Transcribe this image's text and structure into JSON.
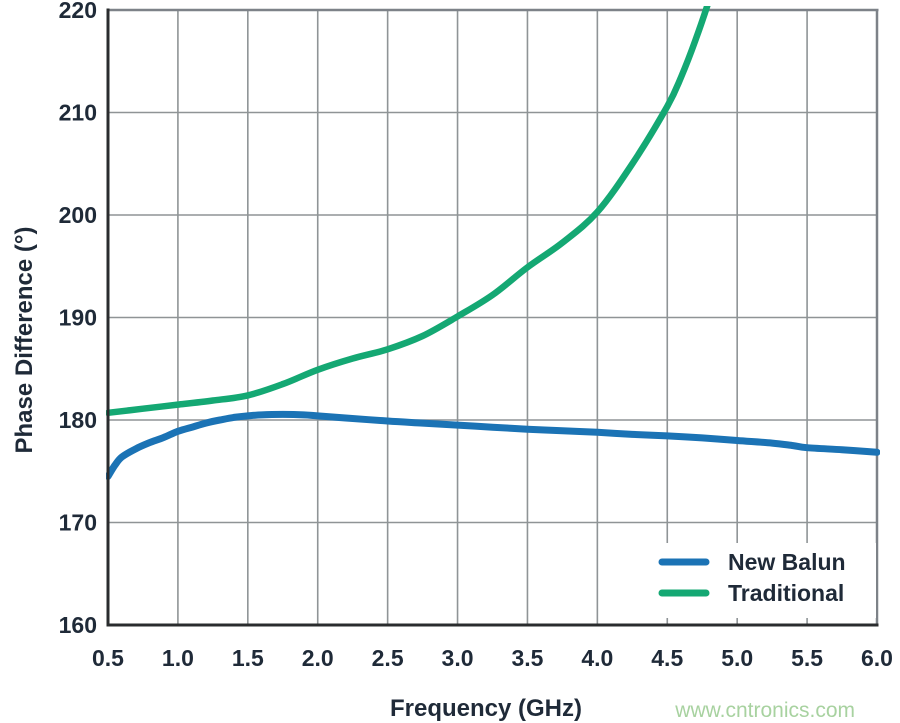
{
  "watermark": {
    "text": "www.cntronics.com",
    "color": "#a8d2a0"
  },
  "colors": {
    "background": "#ffffff",
    "label": "#1f2a38",
    "grid": "#8f9496",
    "plot_border": "#7d8288",
    "axis": "#2a2c2e",
    "legend_background": "#ffffff"
  },
  "chart_data": {
    "type": "line",
    "title": "",
    "xlabel": "Frequency (GHz)",
    "ylabel": "Phase Difference (°)",
    "xlim": [
      0.5,
      6.0
    ],
    "ylim": [
      160,
      220
    ],
    "grid": true,
    "legend_position": "inside-bottom-right",
    "xticks": [
      0.5,
      1.0,
      1.5,
      2.0,
      2.5,
      3.0,
      3.5,
      4.0,
      4.5,
      5.0,
      5.5,
      6.0
    ],
    "xtick_labels": [
      "0.5",
      "1.0",
      "1.5",
      "2.0",
      "2.5",
      "3.0",
      "3.5",
      "4.0",
      "4.5",
      "5.0",
      "5.5",
      "6.0"
    ],
    "yticks": [
      160,
      170,
      180,
      190,
      200,
      210,
      220
    ],
    "ytick_labels": [
      "160",
      "170",
      "180",
      "190",
      "200",
      "210",
      "220"
    ],
    "series": [
      {
        "name": "New Balun",
        "color": "#1b73b5",
        "stroke_width": 7,
        "x": [
          0.5,
          0.55,
          0.6,
          0.7,
          0.8,
          0.9,
          1.0,
          1.1,
          1.2,
          1.3,
          1.4,
          1.5,
          1.6,
          1.75,
          1.9,
          2.0,
          2.2,
          2.5,
          2.75,
          3.0,
          3.25,
          3.5,
          3.75,
          4.0,
          4.25,
          4.5,
          4.75,
          5.0,
          5.25,
          5.4,
          5.5,
          5.75,
          6.0
        ],
        "y": [
          174.5,
          175.6,
          176.4,
          177.2,
          177.8,
          178.3,
          178.9,
          179.3,
          179.7,
          180.0,
          180.25,
          180.4,
          180.5,
          180.55,
          180.5,
          180.4,
          180.2,
          179.9,
          179.7,
          179.5,
          179.3,
          179.1,
          178.95,
          178.8,
          178.6,
          178.45,
          178.25,
          178.0,
          177.75,
          177.5,
          177.3,
          177.1,
          176.85
        ]
      },
      {
        "name": "Traditional",
        "color": "#14a873",
        "stroke_width": 6.5,
        "x": [
          0.5,
          0.75,
          1.0,
          1.25,
          1.5,
          1.75,
          2.0,
          2.25,
          2.5,
          2.75,
          3.0,
          3.25,
          3.5,
          3.75,
          4.0,
          4.25,
          4.5,
          4.6,
          4.7,
          4.8,
          4.85
        ],
        "y": [
          180.7,
          181.1,
          181.5,
          181.9,
          182.4,
          183.5,
          184.9,
          186.0,
          186.9,
          188.2,
          190.1,
          192.2,
          194.9,
          197.3,
          200.3,
          205.0,
          210.6,
          213.5,
          217.0,
          221.0,
          223.5
        ]
      }
    ]
  }
}
